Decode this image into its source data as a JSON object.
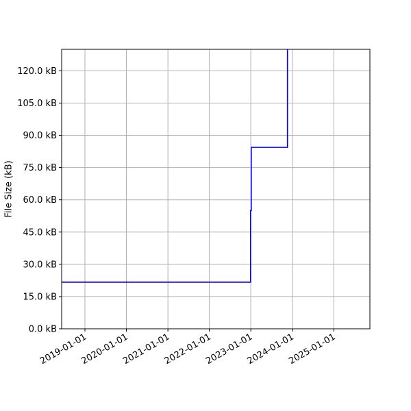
{
  "chart_data": {
    "type": "line",
    "title": "",
    "xlabel": "",
    "ylabel": "File Size (kB)",
    "x_tick_labels": [
      "2019-01-01",
      "2020-01-01",
      "2021-01-01",
      "2022-01-01",
      "2023-01-01",
      "2024-01-01",
      "2025-01-01"
    ],
    "y_tick_labels": [
      "0.0 kB",
      "15.0 kB",
      "30.0 kB",
      "45.0 kB",
      "60.0 kB",
      "75.0 kB",
      "90.0 kB",
      "105.0 kB",
      "120.0 kB"
    ],
    "xlim": [
      "2018-06-10",
      "2025-11-15"
    ],
    "ylim": [
      0,
      130
    ],
    "grid": true,
    "line_color": "#0000ff",
    "series": [
      {
        "step": "post",
        "x": [
          "2018-06-10",
          "2022-12-30",
          "2023-01-05",
          "2023-11-20",
          "2023-11-20"
        ],
        "y": [
          21.7,
          55.0,
          84.4,
          84.4,
          130
        ]
      }
    ]
  }
}
